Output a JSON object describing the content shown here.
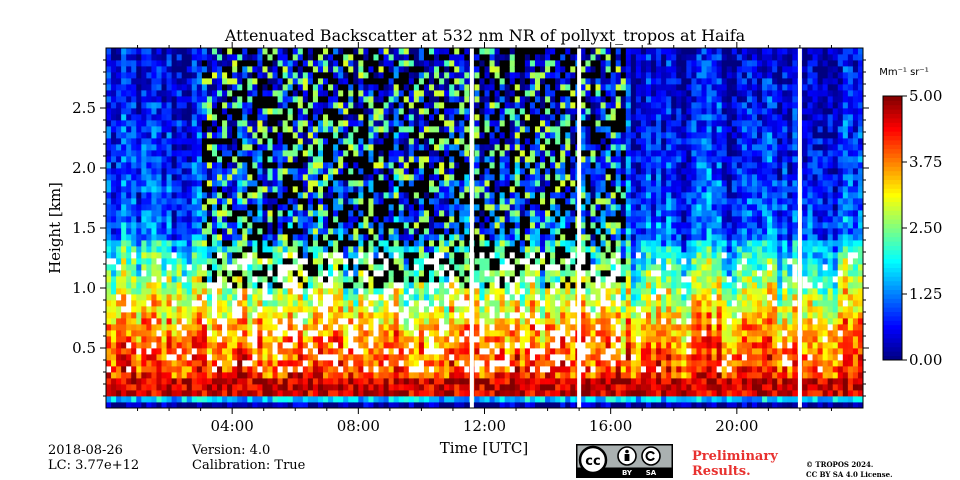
{
  "chart_data": {
    "type": "heatmap",
    "title": "Attenuated Backscatter at 532 nm NR of pollyxt_tropos at Haifa",
    "xlabel": "Time [UTC]",
    "ylabel": "Height [km]",
    "xlim_hours": [
      0,
      24
    ],
    "ylim_km": [
      0,
      3.0
    ],
    "x_ticks": [
      {
        "hour": 4,
        "label": "04:00"
      },
      {
        "hour": 8,
        "label": "08:00"
      },
      {
        "hour": 12,
        "label": "12:00"
      },
      {
        "hour": 16,
        "label": "16:00"
      },
      {
        "hour": 20,
        "label": "20:00"
      }
    ],
    "y_ticks": [
      {
        "value": 0.5,
        "label": "0.5"
      },
      {
        "value": 1.0,
        "label": "1.0"
      },
      {
        "value": 1.5,
        "label": "1.5"
      },
      {
        "value": 2.0,
        "label": "2.0"
      },
      {
        "value": 2.5,
        "label": "2.5"
      }
    ],
    "colorbar": {
      "unit": "Mm⁻¹ sr⁻¹",
      "range": [
        0.0,
        5.0
      ],
      "ticks": [
        {
          "value": 0.0,
          "label": "0.00"
        },
        {
          "value": 1.25,
          "label": "1.25"
        },
        {
          "value": 2.5,
          "label": "2.50"
        },
        {
          "value": 3.75,
          "label": "3.75"
        },
        {
          "value": 5.0,
          "label": "5.00"
        }
      ]
    },
    "data_gaps_hours": [
      11.6,
      15.0,
      22.0
    ],
    "profile_description_km": {
      "surface_layer_top": 0.1,
      "saturated_layer_top": 0.25,
      "aerosol_layer_top": 1.4,
      "clear_noise_window_hours": [
        3.0,
        16.5
      ]
    }
  },
  "footer": {
    "date": "2018-08-26",
    "lc": "LC: 3.77e+12",
    "version": "Version: 4.0",
    "calibration": "Calibration: True",
    "preliminary": "Preliminary",
    "results": "Results.",
    "copyright": "© TROPOS 2024.",
    "license": "CC BY SA 4.0 License.",
    "cc_by": "BY",
    "cc_sa": "SA"
  },
  "colors": {
    "background": "#ffffff",
    "preliminary": "#e8312f",
    "badge": "#aab1b1"
  }
}
